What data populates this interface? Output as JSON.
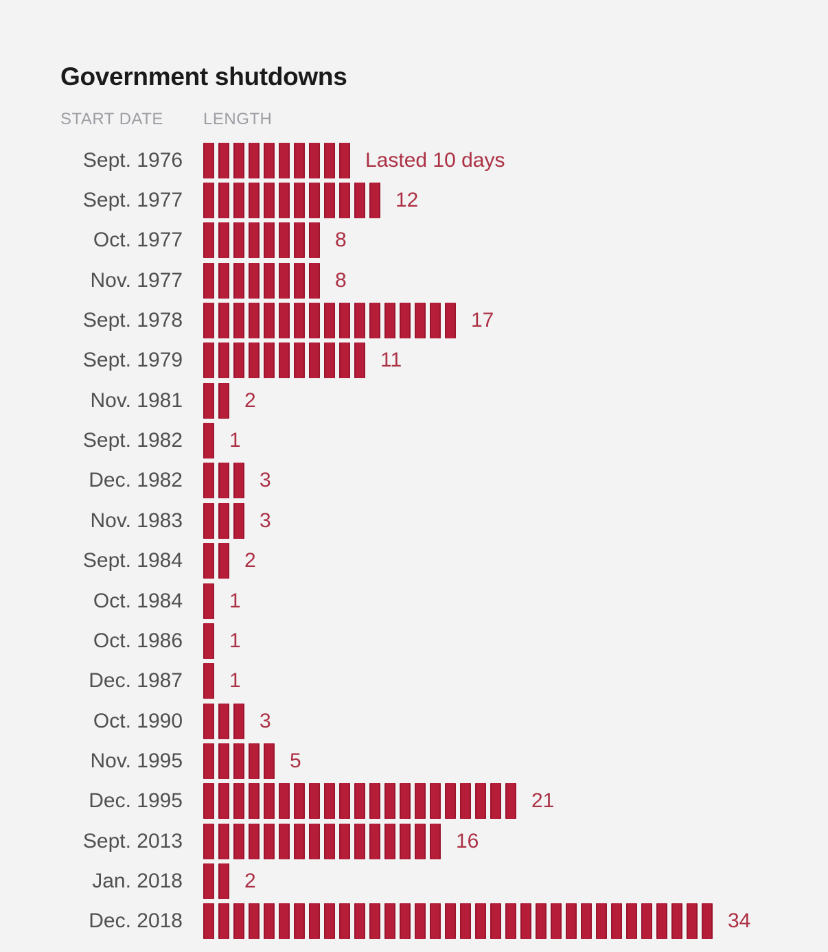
{
  "page": {
    "background_color": "#f3f3f4"
  },
  "chart_data": {
    "type": "bar",
    "title": "Government shutdowns",
    "columns": [
      "START DATE",
      "LENGTH"
    ],
    "value_unit": "days",
    "orientation": "horizontal",
    "legend": "none",
    "grid": false,
    "colors": {
      "tick": "#b51d38",
      "value_label": "#ac3144",
      "date_label": "#505050",
      "header": "#9d9da3",
      "title": "#1a1a1a",
      "background": "#f3f3f4"
    },
    "rows": [
      {
        "start_date": "Sept. 1976",
        "days": 10,
        "value_label": "Lasted 10 days"
      },
      {
        "start_date": "Sept. 1977",
        "days": 12,
        "value_label": "12"
      },
      {
        "start_date": "Oct. 1977",
        "days": 8,
        "value_label": "8"
      },
      {
        "start_date": "Nov. 1977",
        "days": 8,
        "value_label": "8"
      },
      {
        "start_date": "Sept. 1978",
        "days": 17,
        "value_label": "17"
      },
      {
        "start_date": "Sept. 1979",
        "days": 11,
        "value_label": "11"
      },
      {
        "start_date": "Nov. 1981",
        "days": 2,
        "value_label": "2"
      },
      {
        "start_date": "Sept. 1982",
        "days": 1,
        "value_label": "1"
      },
      {
        "start_date": "Dec. 1982",
        "days": 3,
        "value_label": "3"
      },
      {
        "start_date": "Nov. 1983",
        "days": 3,
        "value_label": "3"
      },
      {
        "start_date": "Sept. 1984",
        "days": 2,
        "value_label": "2"
      },
      {
        "start_date": "Oct. 1984",
        "days": 1,
        "value_label": "1"
      },
      {
        "start_date": "Oct. 1986",
        "days": 1,
        "value_label": "1"
      },
      {
        "start_date": "Dec. 1987",
        "days": 1,
        "value_label": "1"
      },
      {
        "start_date": "Oct. 1990",
        "days": 3,
        "value_label": "3"
      },
      {
        "start_date": "Nov. 1995",
        "days": 5,
        "value_label": "5"
      },
      {
        "start_date": "Dec. 1995",
        "days": 21,
        "value_label": "21"
      },
      {
        "start_date": "Sept. 2013",
        "days": 16,
        "value_label": "16"
      },
      {
        "start_date": "Jan. 2018",
        "days": 2,
        "value_label": "2"
      },
      {
        "start_date": "Dec. 2018",
        "days": 34,
        "value_label": "34"
      }
    ]
  }
}
